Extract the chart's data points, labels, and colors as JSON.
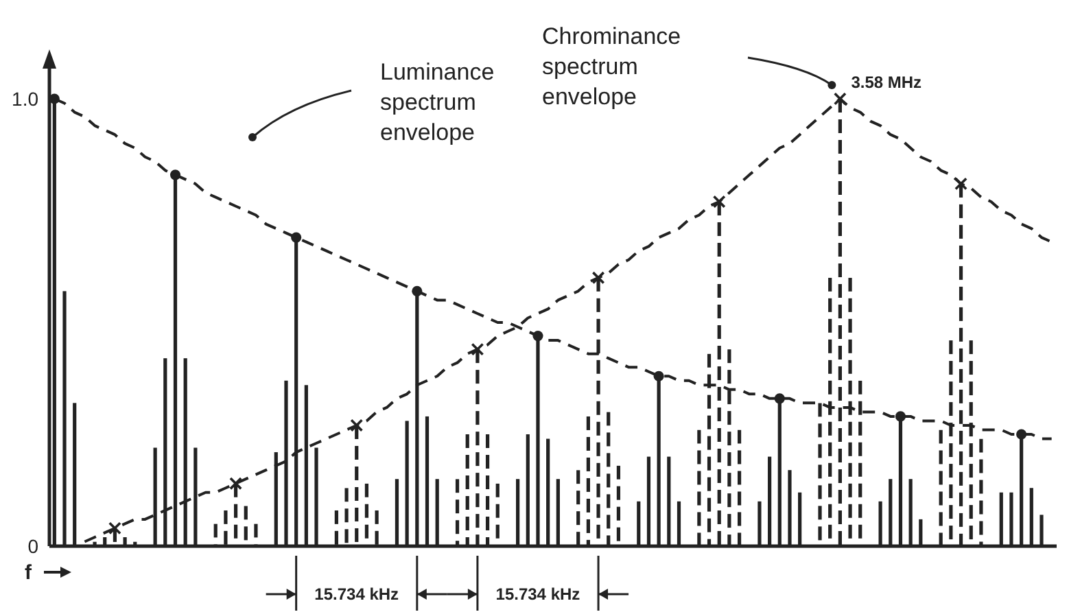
{
  "chart_data": {
    "type": "bar",
    "xlabel": "f",
    "ylim": [
      0,
      1
    ],
    "yticks": [
      0,
      {
        "value": 1,
        "label": "1.0"
      }
    ],
    "tick_labels": "y",
    "categories": [
      null,
      null,
      null,
      null,
      null,
      null,
      null,
      null,
      null,
      null,
      null,
      null,
      null,
      null,
      null,
      null,
      null,
      null,
      null,
      null,
      null,
      null,
      null,
      null,
      null,
      null,
      null,
      null,
      null,
      null,
      null,
      null,
      null,
      null,
      null,
      null,
      null,
      null,
      null,
      null,
      null,
      null,
      null,
      null,
      null,
      null,
      null,
      null,
      null,
      null,
      null,
      null,
      null,
      null,
      null,
      null,
      null,
      null,
      null,
      null,
      null,
      null,
      null,
      null,
      null,
      null,
      null,
      null,
      null,
      null,
      null,
      null,
      null,
      null,
      null,
      null,
      null,
      null,
      null,
      null,
      null,
      null,
      null,
      null,
      null,
      null,
      null,
      null,
      null,
      null,
      null,
      null,
      null,
      null,
      null,
      null,
      null,
      null,
      null,
      null
    ],
    "series": [
      {
        "color": "#222222",
        "line_style": "solid",
        "values": [
          1.0,
          0.57,
          0.32,
          null,
          null,
          null,
          null,
          null,
          null,
          null,
          0.22,
          0.42,
          0.83,
          0.42,
          0.22,
          null,
          null,
          null,
          null,
          null,
          null,
          null,
          0.21,
          0.37,
          0.69,
          0.36,
          0.22,
          null,
          null,
          null,
          null,
          null,
          null,
          null,
          0.15,
          0.28,
          0.57,
          0.29,
          0.15,
          null,
          null,
          null,
          null,
          null,
          null,
          null,
          0.15,
          0.25,
          0.47,
          0.24,
          0.15,
          null,
          null,
          null,
          null,
          null,
          null,
          null,
          0.1,
          0.2,
          0.38,
          0.2,
          0.1,
          null,
          null,
          null,
          null,
          null,
          null,
          null,
          0.1,
          0.2,
          0.33,
          0.17,
          0.12,
          null,
          null,
          null,
          null,
          null,
          null,
          null,
          0.1,
          0.15,
          0.29,
          0.15,
          0.06,
          null,
          null,
          null,
          null,
          null,
          null,
          null,
          0.12,
          0.12,
          0.25,
          0.13,
          0.07,
          null
        ]
      },
      {
        "color": "#222222",
        "line_style": "dashed",
        "values": [
          null,
          null,
          null,
          null,
          0.01,
          0.02,
          0.04,
          0.02,
          0.01,
          null,
          null,
          null,
          null,
          null,
          null,
          null,
          0.05,
          0.08,
          0.14,
          0.09,
          0.05,
          null,
          null,
          null,
          null,
          null,
          null,
          null,
          0.08,
          0.13,
          0.27,
          0.14,
          0.08,
          null,
          null,
          null,
          null,
          null,
          null,
          null,
          0.15,
          0.25,
          0.44,
          0.25,
          0.14,
          null,
          null,
          null,
          null,
          null,
          null,
          null,
          0.17,
          0.29,
          0.6,
          0.3,
          0.18,
          null,
          null,
          null,
          null,
          null,
          null,
          null,
          0.26,
          0.43,
          0.77,
          0.44,
          0.26,
          null,
          null,
          null,
          null,
          null,
          null,
          null,
          0.32,
          0.6,
          1.0,
          0.6,
          0.37,
          null,
          null,
          null,
          null,
          null,
          null,
          null,
          0.26,
          0.46,
          0.81,
          0.46,
          0.24,
          null,
          null,
          null,
          null,
          null,
          null,
          null
        ]
      },
      {
        "type": "line",
        "color": "#222222",
        "line_style": "dashed",
        "values": [
          1.0,
          0.99,
          0.97,
          0.96,
          0.94,
          0.93,
          0.92,
          0.9,
          0.89,
          0.87,
          0.86,
          0.84,
          0.83,
          0.82,
          0.81,
          0.79,
          0.78,
          0.77,
          0.76,
          0.75,
          0.74,
          0.72,
          0.71,
          0.7,
          0.69,
          0.68,
          0.67,
          0.66,
          0.65,
          0.64,
          0.63,
          0.62,
          0.61,
          0.6,
          0.59,
          0.58,
          0.57,
          0.56,
          0.55,
          0.55,
          0.54,
          0.53,
          0.52,
          0.51,
          0.5,
          0.5,
          0.49,
          0.48,
          0.47,
          0.46,
          0.46,
          0.45,
          0.44,
          0.43,
          0.43,
          0.42,
          0.41,
          0.4,
          0.4,
          0.39,
          0.38,
          0.38,
          0.37,
          0.37,
          0.36,
          0.36,
          0.36,
          0.35,
          0.35,
          0.34,
          0.34,
          0.33,
          0.33,
          0.33,
          0.32,
          0.32,
          0.32,
          0.31,
          0.31,
          0.31,
          0.3,
          0.3,
          0.3,
          0.29,
          0.29,
          0.29,
          0.28,
          0.28,
          0.28,
          0.27,
          0.27,
          0.27,
          0.26,
          0.26,
          0.26,
          0.25,
          0.25,
          0.25,
          0.24,
          0.24
        ]
      },
      {
        "type": "line",
        "color": "#222222",
        "line_style": "dashed",
        "values": [
          null,
          null,
          null,
          0.01,
          0.02,
          0.03,
          0.04,
          0.05,
          0.06,
          0.06,
          0.07,
          0.08,
          0.09,
          0.1,
          0.11,
          0.12,
          0.12,
          0.13,
          0.14,
          0.15,
          0.16,
          0.17,
          0.18,
          0.19,
          0.21,
          0.22,
          0.23,
          0.24,
          0.25,
          0.26,
          0.27,
          0.28,
          0.3,
          0.31,
          0.33,
          0.34,
          0.36,
          0.37,
          0.38,
          0.4,
          0.41,
          0.43,
          0.44,
          0.45,
          0.47,
          0.48,
          0.49,
          0.51,
          0.52,
          0.53,
          0.55,
          0.56,
          0.57,
          0.59,
          0.6,
          0.61,
          0.63,
          0.64,
          0.66,
          0.67,
          0.69,
          0.7,
          0.71,
          0.73,
          0.74,
          0.76,
          0.77,
          0.79,
          0.81,
          0.83,
          0.85,
          0.87,
          0.89,
          0.9,
          0.92,
          0.94,
          0.96,
          0.98,
          1.0,
          0.98,
          0.97,
          0.95,
          0.94,
          0.92,
          0.91,
          0.89,
          0.87,
          0.86,
          0.84,
          0.83,
          0.81,
          0.8,
          0.78,
          0.77,
          0.75,
          0.74,
          0.72,
          0.71,
          0.69,
          0.68
        ]
      },
      {
        "type": "scatter",
        "color": "#222222",
        "marker": "circle",
        "values": [
          1.0,
          null,
          null,
          null,
          null,
          null,
          null,
          null,
          null,
          null,
          null,
          null,
          0.83,
          null,
          null,
          null,
          null,
          null,
          null,
          null,
          null,
          null,
          null,
          null,
          0.69,
          null,
          null,
          null,
          null,
          null,
          null,
          null,
          null,
          null,
          null,
          null,
          0.57,
          null,
          null,
          null,
          null,
          null,
          null,
          null,
          null,
          null,
          null,
          null,
          0.47,
          null,
          null,
          null,
          null,
          null,
          null,
          null,
          null,
          null,
          null,
          null,
          0.38,
          null,
          null,
          null,
          null,
          null,
          null,
          null,
          null,
          null,
          null,
          null,
          0.33,
          null,
          null,
          null,
          null,
          null,
          null,
          null,
          null,
          null,
          null,
          null,
          0.29,
          null,
          null,
          null,
          null,
          null,
          null,
          null,
          null,
          null,
          null,
          null,
          0.25,
          null,
          null,
          null
        ]
      },
      {
        "type": "scatter",
        "color": "#222222",
        "marker": "cross",
        "values": [
          null,
          null,
          null,
          null,
          null,
          null,
          0.04,
          null,
          null,
          null,
          null,
          null,
          null,
          null,
          null,
          null,
          null,
          null,
          0.14,
          null,
          null,
          null,
          null,
          null,
          null,
          null,
          null,
          null,
          null,
          null,
          0.27,
          null,
          null,
          null,
          null,
          null,
          null,
          null,
          null,
          null,
          null,
          null,
          0.44,
          null,
          null,
          null,
          null,
          null,
          null,
          null,
          null,
          null,
          null,
          null,
          0.6,
          null,
          null,
          null,
          null,
          null,
          null,
          null,
          null,
          null,
          null,
          null,
          0.77,
          null,
          null,
          null,
          null,
          null,
          null,
          null,
          null,
          null,
          null,
          null,
          1.0,
          null,
          null,
          null,
          null,
          null,
          null,
          null,
          null,
          null,
          null,
          null,
          0.81,
          null,
          null,
          null,
          null,
          null,
          null,
          null,
          null,
          null
        ]
      }
    ],
    "annotations": [
      "Luminance spectrum envelope",
      "Chrominance spectrum envelope",
      "3.58 MHz",
      "15.734 kHz",
      "15.734 kHz"
    ]
  }
}
